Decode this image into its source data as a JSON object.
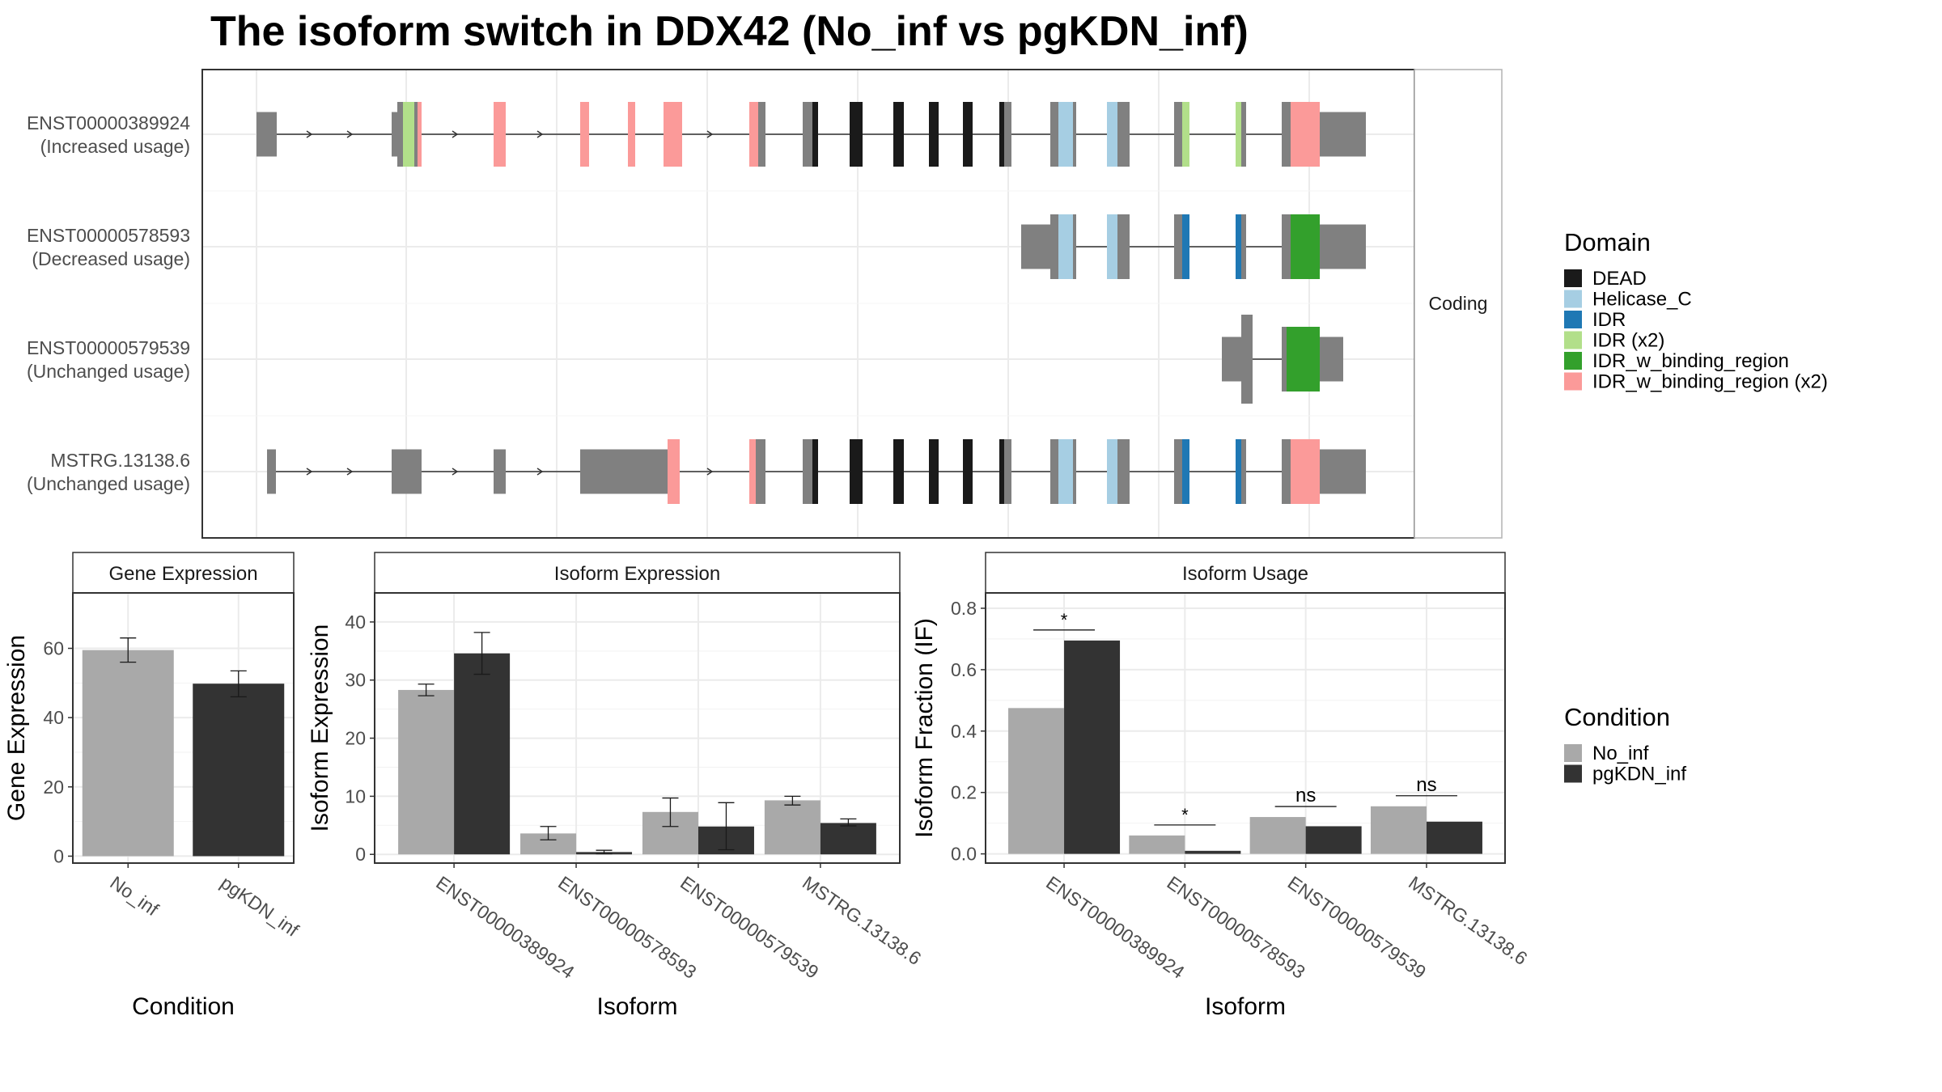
{
  "title": "The isoform switch in DDX42 (No_inf vs pgKDN_inf)",
  "colors": {
    "no_inf": "#A9A9A9",
    "pgkdn_inf": "#333333",
    "exon": "#808080",
    "grid": "#EBEBEB",
    "panel_border": "#333333",
    "strip_fill": "#FFFFFF"
  },
  "structure": {
    "facet_label": "Coding",
    "isoforms": [
      {
        "id": "ENST00000389924",
        "usage": "(Increased usage)"
      },
      {
        "id": "ENST00000578593",
        "usage": "(Decreased usage)"
      },
      {
        "id": "ENST00000579539",
        "usage": "(Unchanged usage)"
      },
      {
        "id": "MSTRG.13138.6",
        "usage": "(Unchanged usage)"
      }
    ]
  },
  "domain_legend": {
    "title": "Domain",
    "items": [
      {
        "label": "DEAD",
        "color": "#1A1A1A"
      },
      {
        "label": "Helicase_C",
        "color": "#A6CEE3"
      },
      {
        "label": "IDR",
        "color": "#1F78B4"
      },
      {
        "label": "IDR (x2)",
        "color": "#B2DF8A"
      },
      {
        "label": "IDR_w_binding_region",
        "color": "#33A02C"
      },
      {
        "label": "IDR_w_binding_region (x2)",
        "color": "#FB9A99"
      }
    ]
  },
  "condition_legend": {
    "title": "Condition",
    "items": [
      {
        "label": "No_inf",
        "color": "#A9A9A9"
      },
      {
        "label": "pgKDN_inf",
        "color": "#333333"
      }
    ]
  },
  "chart_data": [
    {
      "type": "bar",
      "title": "Gene Expression",
      "xlabel": "Condition",
      "ylabel": "Gene Expression",
      "categories": [
        "No_inf",
        "pgKDN_inf"
      ],
      "values": [
        59.5,
        49.8
      ],
      "error_low": [
        56.0,
        46.0
      ],
      "error_high": [
        63.0,
        53.5
      ],
      "ylim": [
        -2,
        76
      ],
      "yticks": [
        0,
        20,
        40,
        60
      ]
    },
    {
      "type": "bar",
      "title": "Isoform Expression",
      "xlabel": "Isoform",
      "ylabel": "Isoform Expression",
      "categories": [
        "ENST00000389924",
        "ENST00000578593",
        "ENST00000579539",
        "MSTRG.13138.6"
      ],
      "series": [
        {
          "name": "No_inf",
          "values": [
            28.3,
            3.6,
            7.3,
            9.3
          ],
          "error_low": [
            27.3,
            2.5,
            4.8,
            8.5
          ],
          "error_high": [
            29.3,
            4.8,
            9.7,
            10.0
          ]
        },
        {
          "name": "pgKDN_inf",
          "values": [
            34.6,
            0.4,
            4.8,
            5.4
          ],
          "error_low": [
            31.0,
            0.1,
            0.8,
            4.9
          ],
          "error_high": [
            38.2,
            0.7,
            8.9,
            6.1
          ]
        }
      ],
      "ylim": [
        -1.5,
        45
      ],
      "yticks": [
        0,
        10,
        20,
        30,
        40
      ]
    },
    {
      "type": "bar",
      "title": "Isoform Usage",
      "xlabel": "Isoform",
      "ylabel": "Isoform Fraction (IF)",
      "categories": [
        "ENST00000389924",
        "ENST00000578593",
        "ENST00000579539",
        "MSTRG.13138.6"
      ],
      "series": [
        {
          "name": "No_inf",
          "values": [
            0.475,
            0.06,
            0.12,
            0.155
          ]
        },
        {
          "name": "pgKDN_inf",
          "values": [
            0.695,
            0.01,
            0.09,
            0.105
          ]
        }
      ],
      "significance": [
        "*",
        "*",
        "ns",
        "ns"
      ],
      "ylim": [
        -0.03,
        0.85
      ],
      "yticks": [
        0.0,
        0.2,
        0.4,
        0.6,
        0.8
      ],
      "ytick_labels": [
        "0.0",
        "0.2",
        "0.4",
        "0.6",
        "0.8"
      ]
    }
  ]
}
